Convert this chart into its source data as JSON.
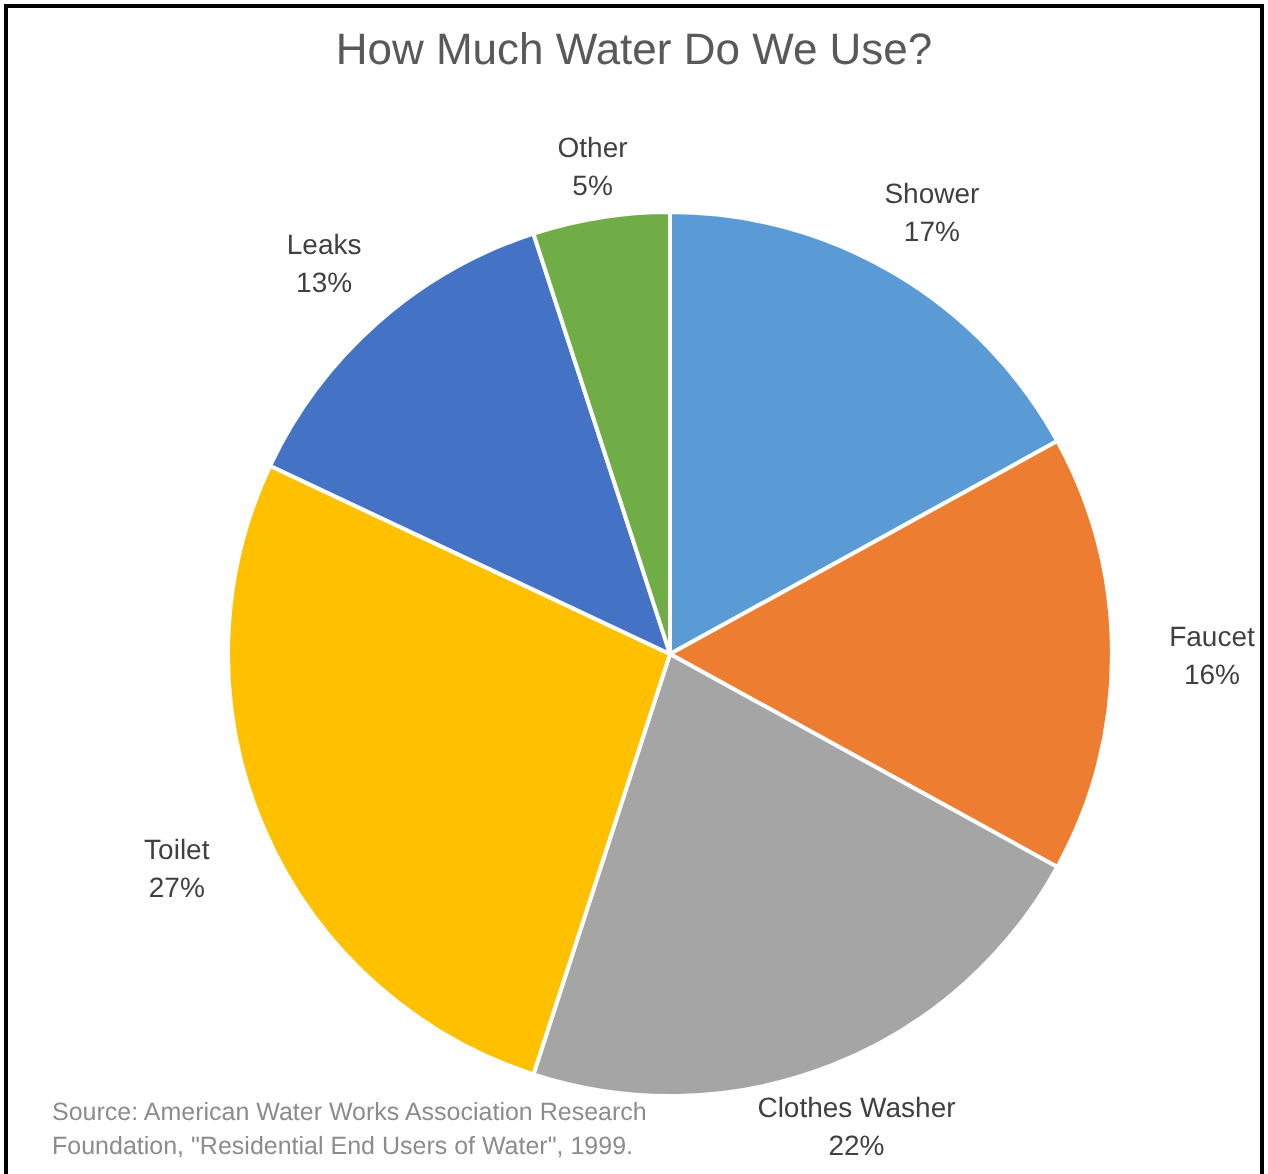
{
  "chart_data": {
    "type": "pie",
    "title": "How Much Water Do We Use?",
    "categories": [
      "Shower",
      "Faucet",
      "Clothes Washer",
      "Toilet",
      "Leaks",
      "Other"
    ],
    "values": [
      17,
      16,
      22,
      27,
      13,
      5
    ],
    "value_labels": [
      "17%",
      "16%",
      "22%",
      "27%",
      "13%",
      "5%"
    ],
    "colors": [
      "#5b9bd5",
      "#ed7d31",
      "#a5a5a5",
      "#ffc000",
      "#4472c4",
      "#70ad47"
    ],
    "annotations": [
      "Source: American Water Works Association Research Foundation, \"Residential End Users of Water\", 1999."
    ]
  }
}
